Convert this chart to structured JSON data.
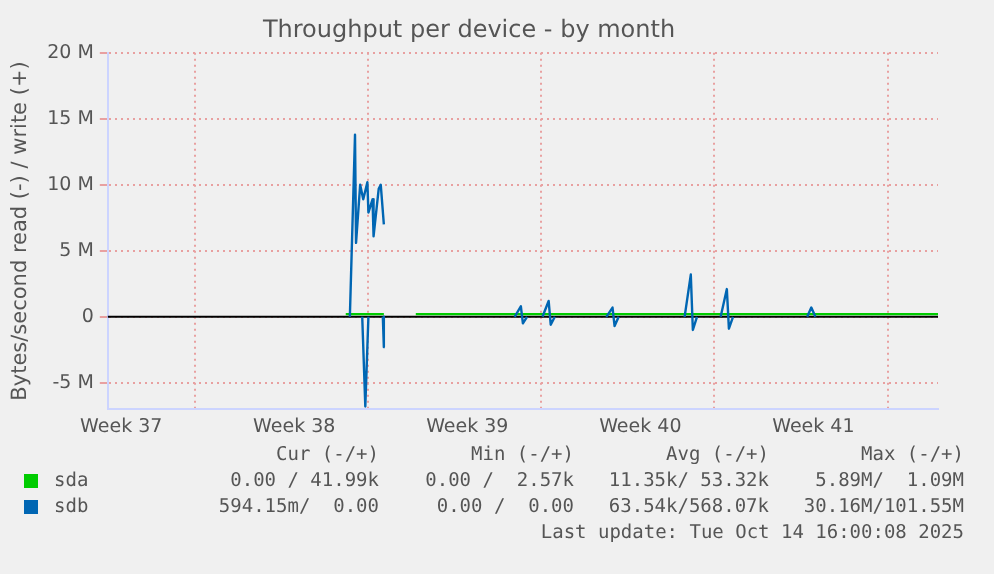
{
  "chart_data": {
    "type": "line",
    "title": "Throughput per device - by month",
    "ylabel": "Bytes/second read (-) / write (+)",
    "xlim": [
      "2025-09-11T11:00",
      "2025-10-15T01:00"
    ],
    "xticks": [
      {
        "value": "2025-09-12",
        "label": "Week 37"
      },
      {
        "value": "2025-09-15",
        "label": null
      },
      {
        "value": "2025-09-19",
        "label": "Week 38"
      },
      {
        "value": "2025-09-22",
        "label": null
      },
      {
        "value": "2025-09-26",
        "label": "Week 39"
      },
      {
        "value": "2025-09-29",
        "label": null
      },
      {
        "value": "2025-10-03",
        "label": "Week 40"
      },
      {
        "value": "2025-10-06",
        "label": null
      },
      {
        "value": "2025-10-10",
        "label": "Week 41"
      },
      {
        "value": "2025-10-13",
        "label": null
      }
    ],
    "ylim": [
      -7,
      20
    ],
    "yticks": [
      {
        "value": -5,
        "label": "-5 M"
      },
      0,
      {
        "value": 5,
        "label": "5 M"
      },
      {
        "value": 10,
        "label": "10 M"
      },
      {
        "value": 15,
        "label": "15 M"
      },
      {
        "value": 20,
        "label": "20 M"
      }
    ],
    "grid": true,
    "legend": "bottom",
    "marker": "none",
    "line_style": "solid",
    "ref_lines": [
      {
        "axis": "y",
        "value": 0,
        "color": "#000000"
      }
    ],
    "series": [
      {
        "name": "sda",
        "color": "#00cc00",
        "x": [
          "2025-09-21T02:00",
          "2025-09-22T15:00",
          "2025-09-22T17:00",
          "2025-09-23T22:00",
          "2025-09-29T12:00",
          "2025-10-06T12:00",
          "2025-10-15T01:00"
        ],
        "values": [
          0.2,
          0.2,
          null,
          0.2,
          0.2,
          0.2,
          0.2
        ]
      },
      {
        "name": "sdb",
        "color": "#0066b3",
        "x": [
          "2025-09-21T06:00",
          "2025-09-21T11:00",
          "2025-09-21T12:00",
          "2025-09-21T16:00",
          "2025-09-21T19:00",
          "2025-09-21T23:00",
          "2025-09-22T00:00",
          "2025-09-22T04:00",
          "2025-09-22T05:00",
          "2025-09-22T10:00",
          "2025-09-22T12:00",
          "2025-09-22T15:00",
          "2025-09-22T17:00",
          "2025-09-27T22:00",
          "2025-09-28T04:00",
          "2025-09-28T06:00",
          "2025-09-28T10:00",
          "2025-09-28T11:00",
          "2025-09-29T01:00",
          "2025-09-29T07:00",
          "2025-09-29T09:00",
          "2025-09-29T13:00",
          "2025-09-29T14:00",
          "2025-10-01T15:00",
          "2025-10-01T21:00",
          "2025-10-01T23:00",
          "2025-10-02T03:00",
          "2025-10-02T04:00",
          "2025-10-04T19:00",
          "2025-10-05T01:00",
          "2025-10-05T03:00",
          "2025-10-05T07:00",
          "2025-10-05T08:00",
          "2025-10-06T06:00",
          "2025-10-06T12:00",
          "2025-10-06T14:00",
          "2025-10-06T18:00",
          "2025-10-06T19:00",
          "2025-10-09T18:00",
          "2025-10-09T22:00",
          "2025-10-10T02:00"
        ],
        "values": [
          0,
          13.8,
          5.6,
          10,
          8.9,
          10.2,
          7.9,
          8.9,
          6.1,
          9.7,
          10,
          7,
          null,
          0,
          0.8,
          -0.5,
          0,
          null,
          0,
          1.2,
          -0.6,
          0,
          null,
          0,
          0.7,
          -0.7,
          0,
          null,
          0,
          3.2,
          -1,
          0,
          null,
          0,
          2.1,
          -0.9,
          0,
          null,
          0,
          0.7,
          0
        ]
      },
      {
        "color": "#0066b3",
        "x": [
          "2025-09-21T18:00",
          "2025-09-21T21:00",
          "2025-09-22T00:00",
          "2025-09-22T01:00",
          "2025-09-22T14:00",
          "2025-09-22T15:00"
        ],
        "values": [
          0,
          -6.8,
          0,
          null,
          0,
          -2.3
        ]
      }
    ],
    "annotations": [
      "Cur (-/+)",
      "Min (-/+)",
      "Avg (-/+)",
      "Max (-/+)",
      "0.00 / 41.99k",
      "0.00 /  2.57k",
      "11.35k/ 53.32k",
      "5.89M/  1.09M",
      "594.15m/  0.00",
      "0.00 /  0.00",
      "63.54k/568.07k",
      "30.16M/101.55M",
      "Last update: Tue Oct 14 16:00:08 2025"
    ]
  }
}
